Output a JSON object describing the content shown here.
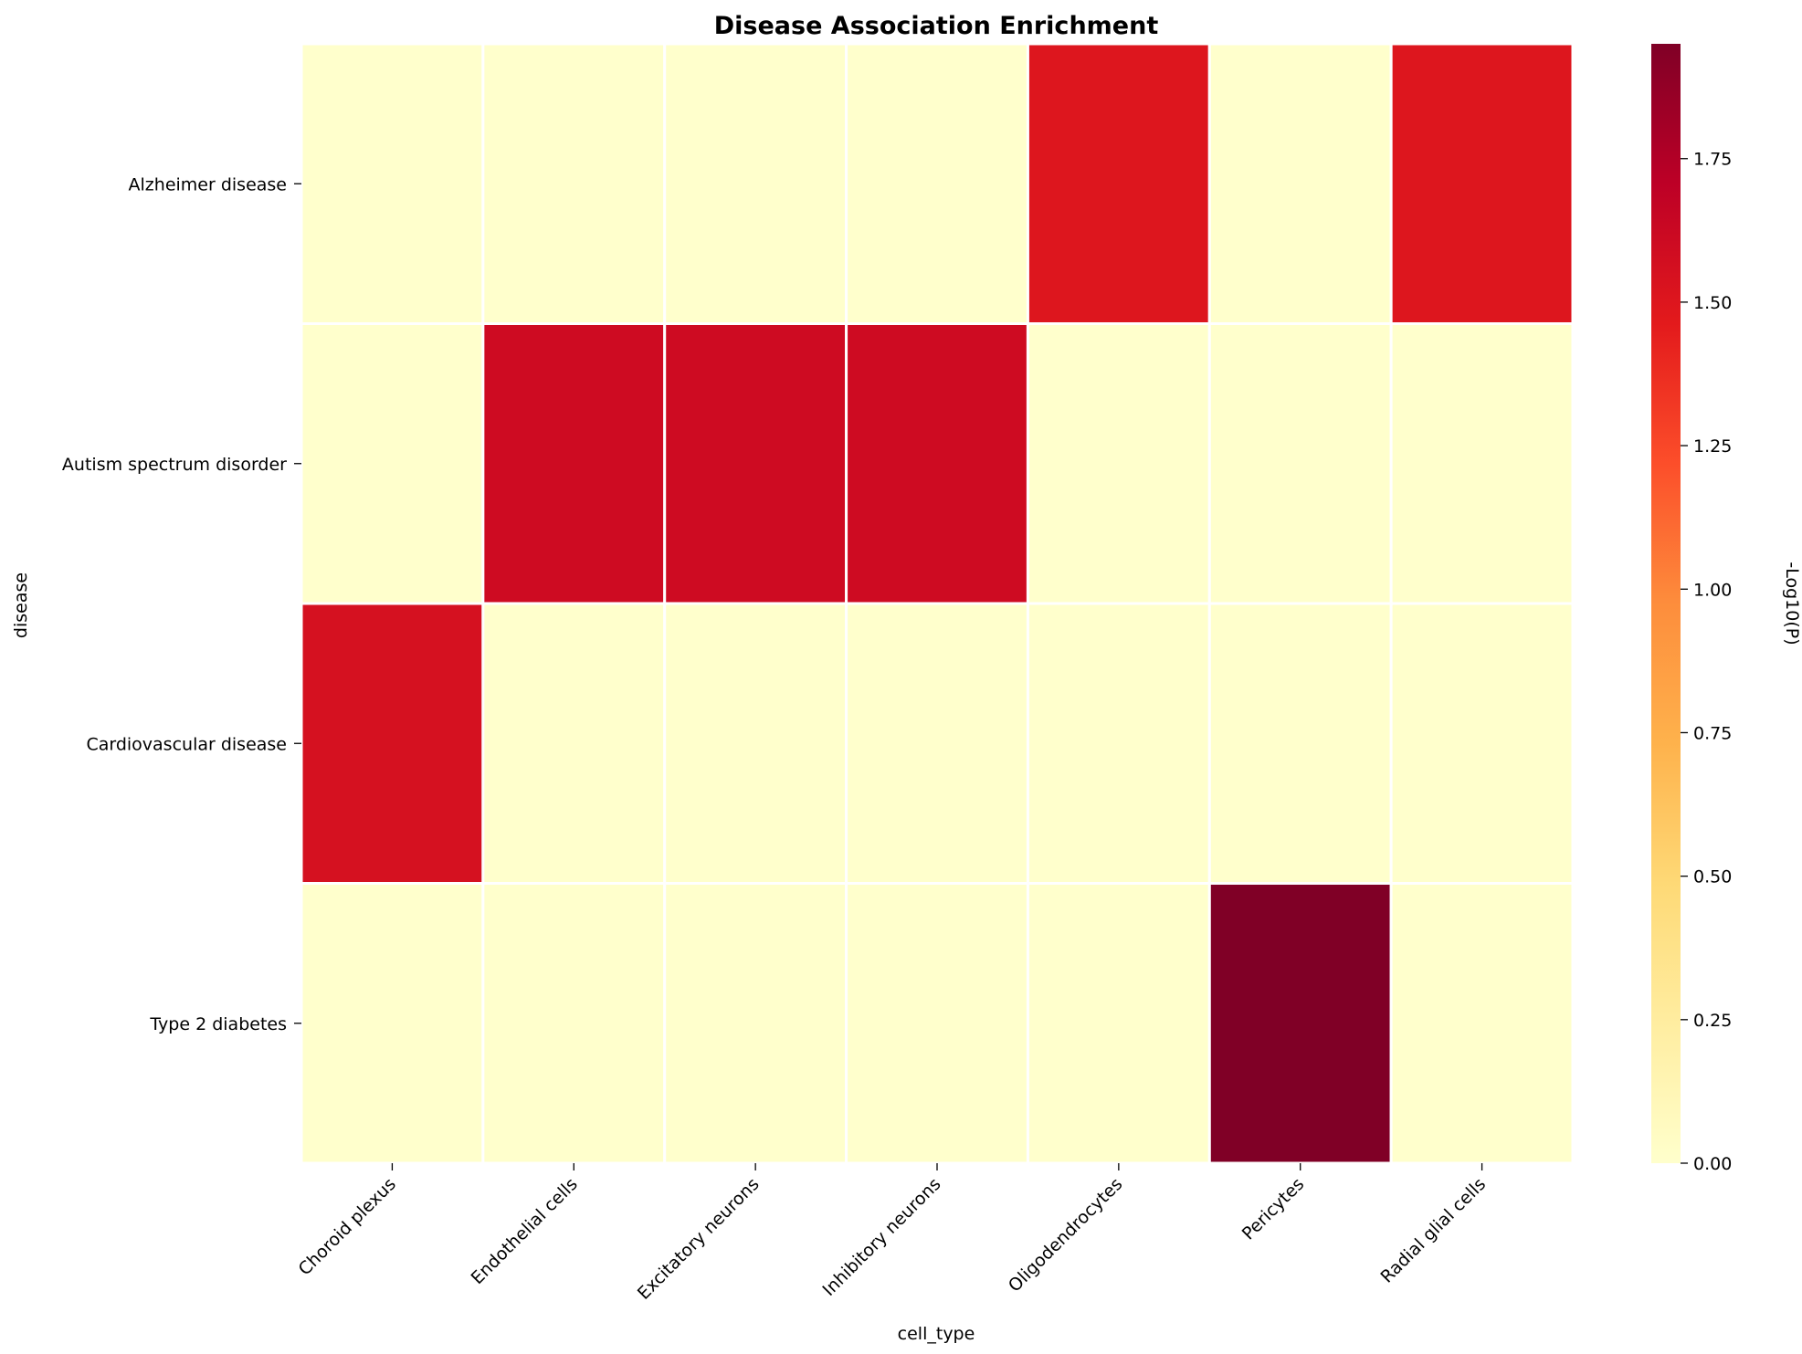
{
  "chart_data": {
    "type": "heatmap",
    "title": "Disease Association Enrichment",
    "xlabel": "cell_type",
    "ylabel": "disease",
    "x_categories": [
      "Choroid plexus",
      "Endothelial cells",
      "Excitatory neurons",
      "Inhibitory neurons",
      "Oligodendrocytes",
      "Pericytes",
      "Radial glial cells"
    ],
    "y_categories": [
      "Alzheimer disease",
      "Autism spectrum disorder",
      "Cardiovascular disease",
      "Type 2 diabetes"
    ],
    "values": [
      [
        0,
        0,
        0,
        0,
        1.5,
        0,
        1.5
      ],
      [
        0,
        1.6,
        1.6,
        1.6,
        0,
        0,
        0
      ],
      [
        1.55,
        0,
        0,
        0,
        0,
        0,
        0
      ],
      [
        0,
        0,
        0,
        0,
        0,
        1.95,
        0
      ]
    ],
    "colorbar": {
      "label": "-Log10(P)",
      "colormap": "YlOrRd",
      "vmin": 0,
      "vmax": 1.95,
      "ticks": [
        "0.00",
        "0.25",
        "0.50",
        "0.75",
        "1.00",
        "1.25",
        "1.50",
        "1.75"
      ]
    },
    "grid": false,
    "cell_border_color": "#ffffff"
  }
}
